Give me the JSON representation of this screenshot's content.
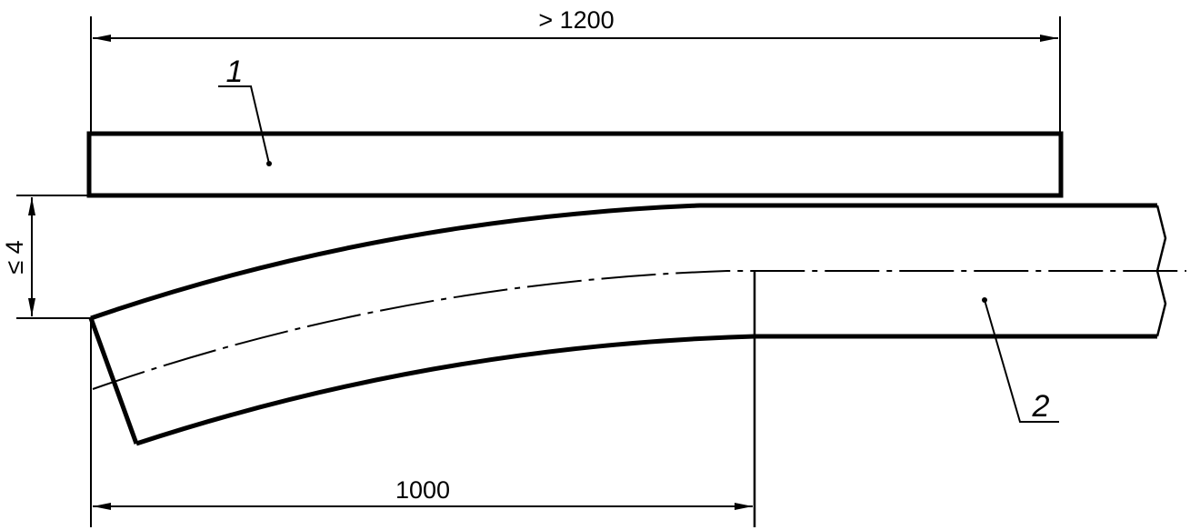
{
  "dimensions": {
    "overall_length": "> 1200",
    "bend_length": "1000",
    "deviation": "≤ 4"
  },
  "labels": {
    "part1": "1",
    "part2": "2"
  },
  "colors": {
    "line": "#000000",
    "background": "#ffffff"
  }
}
